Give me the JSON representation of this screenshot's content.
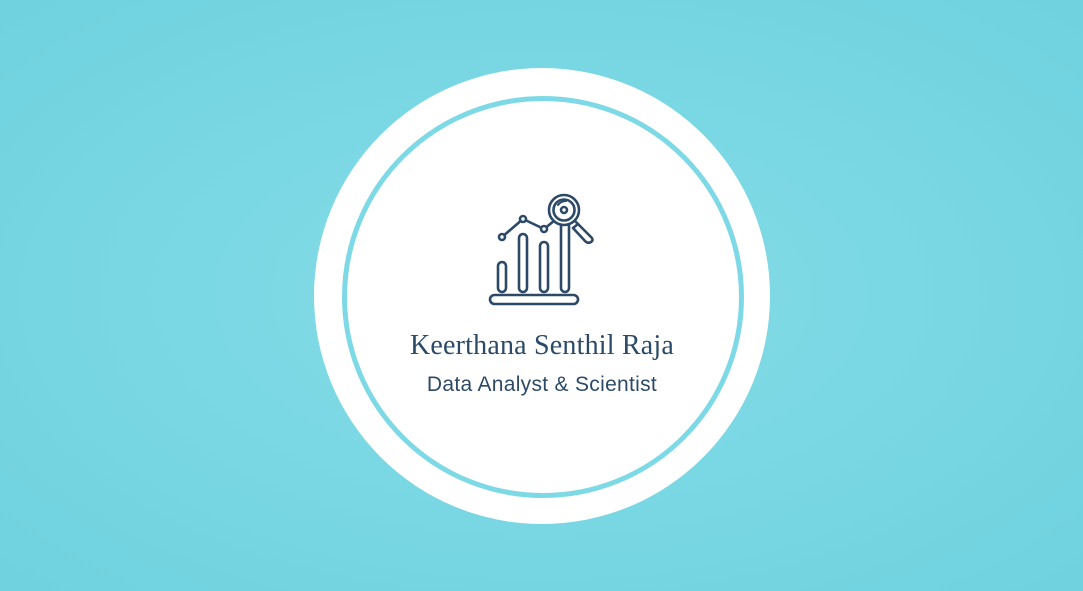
{
  "card": {
    "name": "Keerthana Senthil Raja",
    "role": "Data Analyst & Scientist"
  },
  "logo": {
    "icon": "bar-chart-magnifier-icon",
    "stroke_color": "#2c4a68"
  },
  "colors": {
    "background": "#7ad8e4",
    "ring": "#7dd9e5",
    "badge": "#ffffff",
    "text": "#2c4a68"
  }
}
